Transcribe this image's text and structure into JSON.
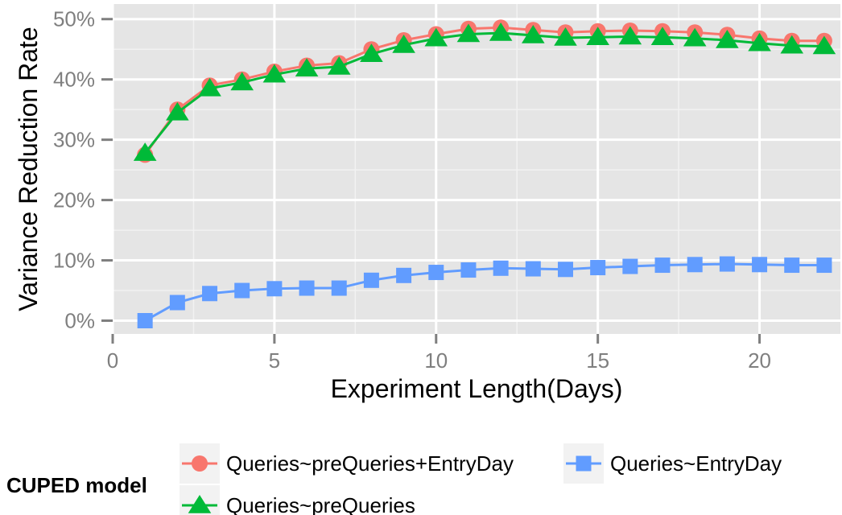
{
  "chart_data": {
    "type": "line",
    "title": "",
    "xlabel": "Experiment Length(Days)",
    "ylabel": "Variance Reduction Rate",
    "xlim": [
      0,
      22.5
    ],
    "ylim": [
      -2.2,
      52.5
    ],
    "x_ticks": [
      0,
      5,
      10,
      15,
      20
    ],
    "x_tick_labels": [
      "0",
      "5",
      "10",
      "15",
      "20"
    ],
    "y_ticks": [
      0,
      10,
      20,
      30,
      40,
      50
    ],
    "y_tick_labels": [
      "0%",
      "10%",
      "20%",
      "30%",
      "40%",
      "50%"
    ],
    "grid": true,
    "panel_background": "#e5e5e5",
    "legend": {
      "title": "CUPED model",
      "position": "bottom"
    },
    "x": [
      1,
      2,
      3,
      4,
      5,
      6,
      7,
      8,
      9,
      10,
      11,
      12,
      13,
      14,
      15,
      16,
      17,
      18,
      19,
      20,
      21,
      22
    ],
    "series": [
      {
        "name": "Queries~preQueries+EntryDay",
        "color": "#f8766d",
        "marker": "circle",
        "values": [
          27.5,
          35.0,
          39.0,
          40.0,
          41.3,
          42.3,
          42.7,
          45.0,
          46.5,
          47.5,
          48.4,
          48.6,
          48.2,
          47.8,
          48.0,
          48.1,
          48.0,
          47.8,
          47.4,
          46.8,
          46.4,
          46.4
        ]
      },
      {
        "name": "Queries~preQueries",
        "color": "#00ba38",
        "marker": "triangle",
        "values": [
          27.8,
          34.5,
          38.5,
          39.5,
          40.8,
          41.8,
          42.1,
          44.2,
          45.7,
          46.8,
          47.5,
          47.7,
          47.3,
          46.9,
          47.0,
          47.1,
          47.0,
          46.8,
          46.5,
          46.0,
          45.6,
          45.5
        ]
      },
      {
        "name": "Queries~EntryDay",
        "color": "#619cff",
        "marker": "square",
        "values": [
          0.0,
          3.0,
          4.5,
          5.0,
          5.3,
          5.4,
          5.4,
          6.7,
          7.5,
          8.0,
          8.4,
          8.7,
          8.6,
          8.5,
          8.8,
          9.0,
          9.2,
          9.3,
          9.4,
          9.3,
          9.2,
          9.2
        ]
      }
    ]
  }
}
